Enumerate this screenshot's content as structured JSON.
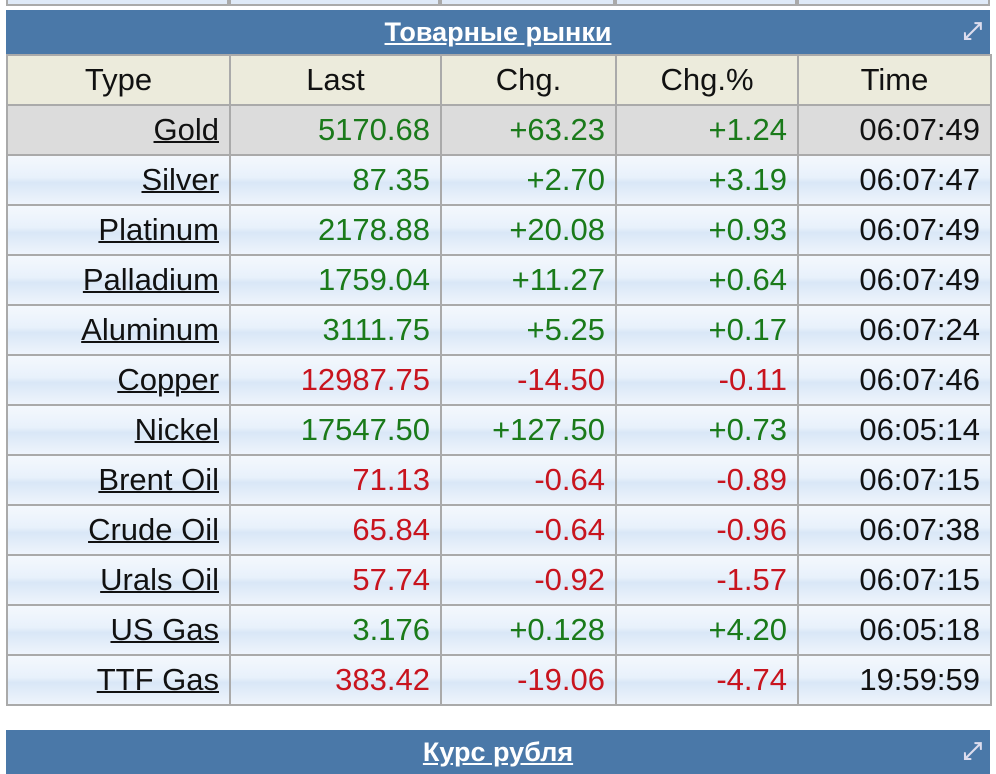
{
  "panel": {
    "title": "Товарные рынки",
    "expand_icon": "external-link-icon",
    "next_title": "Курс рубля"
  },
  "columns": [
    "Type",
    "Last",
    "Chg.",
    "Chg.%",
    "Time"
  ],
  "colors": {
    "up": "#1a7a1a",
    "down": "#c8141e",
    "header_bar": "#4a78a8"
  },
  "rows": [
    {
      "type": "Gold",
      "last": "5170.68",
      "chg": "+63.23",
      "pct": "+1.24",
      "time": "06:07:49",
      "dir": "up"
    },
    {
      "type": "Silver",
      "last": "87.35",
      "chg": "+2.70",
      "pct": "+3.19",
      "time": "06:07:47",
      "dir": "up"
    },
    {
      "type": "Platinum",
      "last": "2178.88",
      "chg": "+20.08",
      "pct": "+0.93",
      "time": "06:07:49",
      "dir": "up"
    },
    {
      "type": "Palladium",
      "last": "1759.04",
      "chg": "+11.27",
      "pct": "+0.64",
      "time": "06:07:49",
      "dir": "up"
    },
    {
      "type": "Aluminum",
      "last": "3111.75",
      "chg": "+5.25",
      "pct": "+0.17",
      "time": "06:07:24",
      "dir": "up"
    },
    {
      "type": "Copper",
      "last": "12987.75",
      "chg": "-14.50",
      "pct": "-0.11",
      "time": "06:07:46",
      "dir": "dn"
    },
    {
      "type": "Nickel",
      "last": "17547.50",
      "chg": "+127.50",
      "pct": "+0.73",
      "time": "06:05:14",
      "dir": "up"
    },
    {
      "type": "Brent Oil",
      "last": "71.13",
      "chg": "-0.64",
      "pct": "-0.89",
      "time": "06:07:15",
      "dir": "dn"
    },
    {
      "type": "Crude Oil",
      "last": "65.84",
      "chg": "-0.64",
      "pct": "-0.96",
      "time": "06:07:38",
      "dir": "dn"
    },
    {
      "type": "Urals Oil",
      "last": "57.74",
      "chg": "-0.92",
      "pct": "-1.57",
      "time": "06:07:15",
      "dir": "dn"
    },
    {
      "type": "US Gas",
      "last": "3.176",
      "chg": "+0.128",
      "pct": "+4.20",
      "time": "06:05:18",
      "dir": "up"
    },
    {
      "type": "TTF Gas",
      "last": "383.42",
      "chg": "-19.06",
      "pct": "-4.74",
      "time": "19:59:59",
      "dir": "dn"
    }
  ]
}
